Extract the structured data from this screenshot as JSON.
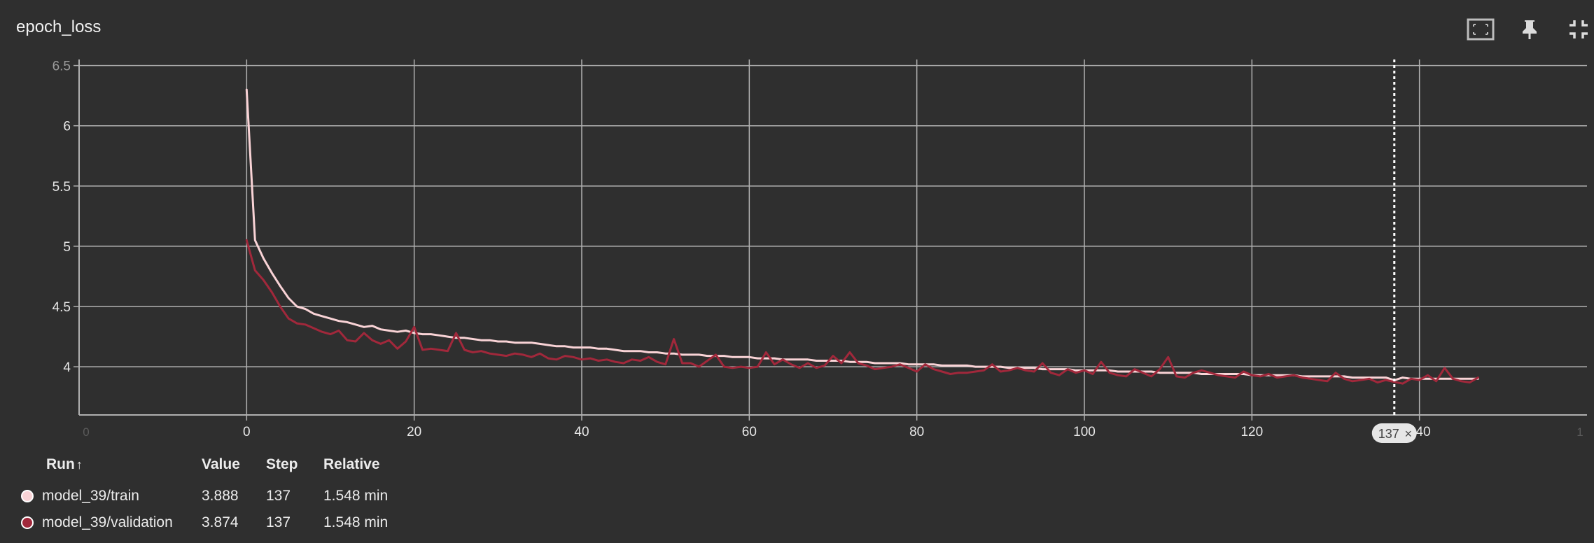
{
  "card": {
    "title": "epoch_loss"
  },
  "toolbar": {
    "icons": [
      "fit-domain-icon",
      "pin-icon",
      "collapse-icon",
      "more-vert-icon"
    ]
  },
  "colors": {
    "background": "#2f2f2f",
    "grid": "#b0b0b0",
    "train": "#f9d3d6",
    "validation": "#a1283b",
    "hover_line": "#ffffff"
  },
  "hover": {
    "step_label": "137",
    "close": "×"
  },
  "table": {
    "headers": {
      "run": "Run",
      "sort_arrow": "↑",
      "value": "Value",
      "step": "Step",
      "relative": "Relative"
    },
    "rows": [
      {
        "run": "model_39/train",
        "value": "3.888",
        "step": "137",
        "relative": "1.548 min"
      },
      {
        "run": "model_39/validation",
        "value": "3.874",
        "step": "137",
        "relative": "1.548 min"
      }
    ]
  },
  "chart_data": {
    "type": "line",
    "xlim": [
      -20,
      160
    ],
    "ylim": [
      3.6,
      6.55
    ],
    "x_ticks": [
      0,
      20,
      40,
      60,
      80,
      100,
      120,
      140
    ],
    "x_tick_labels": [
      "0",
      "20",
      "40",
      "60",
      "80",
      "100",
      "120",
      "140"
    ],
    "x_tick_labels_faint": [
      "0",
      "1"
    ],
    "y_ticks": [
      4,
      4.5,
      5,
      5.5,
      6,
      6.5
    ],
    "y_tick_labels": [
      "4",
      "4.5",
      "5",
      "5.5",
      "6",
      "6.5"
    ],
    "hover_x": 137,
    "grid": true,
    "series": [
      {
        "name": "model_39/train",
        "color": "#f9d3d6",
        "x": [
          0,
          1,
          2,
          3,
          4,
          5,
          6,
          7,
          8,
          9,
          10,
          11,
          12,
          13,
          14,
          15,
          16,
          17,
          18,
          19,
          20,
          21,
          22,
          23,
          24,
          25,
          26,
          27,
          28,
          29,
          30,
          31,
          32,
          33,
          34,
          35,
          36,
          37,
          38,
          39,
          40,
          41,
          42,
          43,
          44,
          45,
          46,
          47,
          48,
          49,
          50,
          51,
          52,
          53,
          54,
          55,
          56,
          57,
          58,
          59,
          60,
          61,
          62,
          63,
          64,
          65,
          66,
          67,
          68,
          69,
          70,
          71,
          72,
          73,
          74,
          75,
          76,
          77,
          78,
          79,
          80,
          81,
          82,
          83,
          84,
          85,
          86,
          87,
          88,
          89,
          90,
          91,
          92,
          93,
          94,
          95,
          96,
          97,
          98,
          99,
          100,
          101,
          102,
          103,
          104,
          105,
          106,
          107,
          108,
          109,
          110,
          111,
          112,
          113,
          114,
          115,
          116,
          117,
          118,
          119,
          120,
          121,
          122,
          123,
          124,
          125,
          126,
          127,
          128,
          129,
          130,
          131,
          132,
          133,
          134,
          135,
          136,
          137,
          138,
          139,
          140,
          141,
          142,
          143,
          144,
          145,
          146,
          147
        ],
        "values": [
          6.3,
          5.05,
          4.9,
          4.78,
          4.67,
          4.57,
          4.5,
          4.48,
          4.44,
          4.42,
          4.4,
          4.38,
          4.37,
          4.35,
          4.33,
          4.34,
          4.31,
          4.3,
          4.29,
          4.3,
          4.28,
          4.27,
          4.27,
          4.26,
          4.25,
          4.24,
          4.24,
          4.23,
          4.22,
          4.22,
          4.21,
          4.21,
          4.2,
          4.2,
          4.2,
          4.19,
          4.18,
          4.17,
          4.17,
          4.16,
          4.16,
          4.16,
          4.15,
          4.15,
          4.14,
          4.13,
          4.13,
          4.13,
          4.12,
          4.12,
          4.11,
          4.11,
          4.1,
          4.1,
          4.1,
          4.09,
          4.09,
          4.09,
          4.08,
          4.08,
          4.08,
          4.07,
          4.07,
          4.07,
          4.06,
          4.06,
          4.06,
          4.06,
          4.05,
          4.05,
          4.05,
          4.05,
          4.04,
          4.04,
          4.04,
          4.03,
          4.03,
          4.03,
          4.03,
          4.02,
          4.02,
          4.02,
          4.02,
          4.01,
          4.01,
          4.01,
          4.01,
          4.0,
          4.0,
          4.0,
          4.0,
          3.99,
          3.99,
          3.99,
          3.99,
          3.98,
          3.98,
          3.98,
          3.98,
          3.97,
          3.97,
          3.97,
          3.97,
          3.97,
          3.96,
          3.96,
          3.96,
          3.96,
          3.96,
          3.95,
          3.95,
          3.95,
          3.95,
          3.95,
          3.94,
          3.94,
          3.94,
          3.94,
          3.94,
          3.94,
          3.93,
          3.93,
          3.93,
          3.93,
          3.93,
          3.93,
          3.92,
          3.92,
          3.92,
          3.92,
          3.92,
          3.92,
          3.91,
          3.91,
          3.91,
          3.91,
          3.91,
          3.888,
          3.91,
          3.9,
          3.9,
          3.9,
          3.9,
          3.9,
          3.9,
          3.9,
          3.9,
          3.9
        ]
      },
      {
        "name": "model_39/validation",
        "color": "#a1283b",
        "x": [
          0,
          1,
          2,
          3,
          4,
          5,
          6,
          7,
          8,
          9,
          10,
          11,
          12,
          13,
          14,
          15,
          16,
          17,
          18,
          19,
          20,
          21,
          22,
          23,
          24,
          25,
          26,
          27,
          28,
          29,
          30,
          31,
          32,
          33,
          34,
          35,
          36,
          37,
          38,
          39,
          40,
          41,
          42,
          43,
          44,
          45,
          46,
          47,
          48,
          49,
          50,
          51,
          52,
          53,
          54,
          55,
          56,
          57,
          58,
          59,
          60,
          61,
          62,
          63,
          64,
          65,
          66,
          67,
          68,
          69,
          70,
          71,
          72,
          73,
          74,
          75,
          76,
          77,
          78,
          79,
          80,
          81,
          82,
          83,
          84,
          85,
          86,
          87,
          88,
          89,
          90,
          91,
          92,
          93,
          94,
          95,
          96,
          97,
          98,
          99,
          100,
          101,
          102,
          103,
          104,
          105,
          106,
          107,
          108,
          109,
          110,
          111,
          112,
          113,
          114,
          115,
          116,
          117,
          118,
          119,
          120,
          121,
          122,
          123,
          124,
          125,
          126,
          127,
          128,
          129,
          130,
          131,
          132,
          133,
          134,
          135,
          136,
          137,
          138,
          139,
          140,
          141,
          142,
          143,
          144,
          145,
          146,
          147
        ],
        "values": [
          5.05,
          4.8,
          4.72,
          4.62,
          4.5,
          4.4,
          4.36,
          4.35,
          4.32,
          4.29,
          4.27,
          4.3,
          4.22,
          4.21,
          4.28,
          4.22,
          4.19,
          4.22,
          4.15,
          4.21,
          4.33,
          4.14,
          4.15,
          4.14,
          4.13,
          4.28,
          4.14,
          4.12,
          4.13,
          4.11,
          4.1,
          4.09,
          4.11,
          4.1,
          4.08,
          4.11,
          4.07,
          4.06,
          4.09,
          4.08,
          4.06,
          4.07,
          4.05,
          4.06,
          4.04,
          4.03,
          4.06,
          4.05,
          4.08,
          4.04,
          4.02,
          4.23,
          4.03,
          4.03,
          4.0,
          4.05,
          4.1,
          4.0,
          3.99,
          4.0,
          3.99,
          4.0,
          4.12,
          4.02,
          4.06,
          4.02,
          3.99,
          4.03,
          3.99,
          4.01,
          4.09,
          4.03,
          4.12,
          4.03,
          4.01,
          3.98,
          3.99,
          4.0,
          4.02,
          3.99,
          3.96,
          4.02,
          3.98,
          3.96,
          3.94,
          3.95,
          3.95,
          3.96,
          3.97,
          4.02,
          3.96,
          3.97,
          3.99,
          3.97,
          3.96,
          4.03,
          3.95,
          3.93,
          3.98,
          3.95,
          3.97,
          3.94,
          4.04,
          3.95,
          3.93,
          3.92,
          3.98,
          3.95,
          3.92,
          3.98,
          4.08,
          3.92,
          3.91,
          3.95,
          3.97,
          3.95,
          3.93,
          3.92,
          3.91,
          3.96,
          3.93,
          3.92,
          3.94,
          3.91,
          3.92,
          3.93,
          3.91,
          3.9,
          3.89,
          3.88,
          3.95,
          3.9,
          3.88,
          3.89,
          3.9,
          3.87,
          3.89,
          3.874,
          3.86,
          3.9,
          3.89,
          3.93,
          3.88,
          3.99,
          3.9,
          3.88,
          3.87,
          3.91
        ]
      }
    ]
  }
}
